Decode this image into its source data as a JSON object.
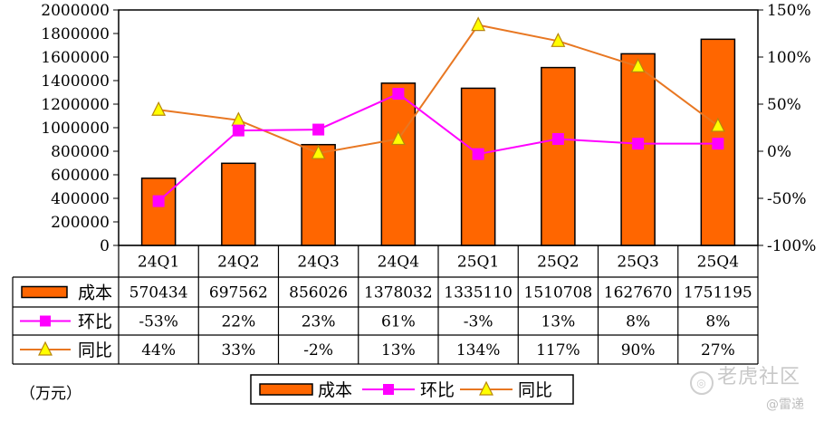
{
  "chart_data": {
    "type": "bar",
    "categories": [
      "24Q1",
      "24Q2",
      "24Q3",
      "24Q4",
      "25Q1",
      "25Q2",
      "25Q3",
      "25Q4"
    ],
    "series": [
      {
        "name": "成本",
        "type": "bar",
        "axis": "left",
        "values": [
          570434,
          697562,
          856026,
          1378032,
          1335110,
          1510708,
          1627670,
          1751195
        ],
        "labels": [
          "570434",
          "697562",
          "856026",
          "1378032",
          "1335110",
          "1510708",
          "1627670",
          "1751195"
        ],
        "color": "#ff6600",
        "marker": "bar"
      },
      {
        "name": "环比",
        "type": "line",
        "axis": "right",
        "values": [
          -53,
          22,
          23,
          61,
          -3,
          13,
          8,
          8
        ],
        "labels": [
          "-53%",
          "22%",
          "23%",
          "61%",
          "-3%",
          "13%",
          "8%",
          "8%"
        ],
        "color": "#ff00ff",
        "marker": "square"
      },
      {
        "name": "同比",
        "type": "line",
        "axis": "right",
        "values": [
          44,
          33,
          -2,
          13,
          134,
          117,
          90,
          27
        ],
        "labels": [
          "44%",
          "33%",
          "-2%",
          "13%",
          "134%",
          "117%",
          "90%",
          "27%"
        ],
        "color": "#e87722",
        "marker": "triangle"
      }
    ],
    "left_axis": {
      "min": 0,
      "max": 2000000,
      "step": 200000,
      "ticks": [
        "0",
        "200000",
        "400000",
        "600000",
        "800000",
        "1000000",
        "1200000",
        "1400000",
        "1600000",
        "1800000",
        "2000000"
      ]
    },
    "right_axis": {
      "min": -100,
      "max": 150,
      "step": 50,
      "ticks": [
        "-100%",
        "-50%",
        "0%",
        "50%",
        "100%",
        "150%"
      ]
    },
    "unit_label": "（万元）",
    "legend": {
      "position": "bottom",
      "items": [
        "成本",
        "环比",
        "同比"
      ]
    },
    "data_table": true,
    "grid": false
  },
  "watermark": {
    "text": "老虎社区",
    "credit": "@雷递"
  }
}
